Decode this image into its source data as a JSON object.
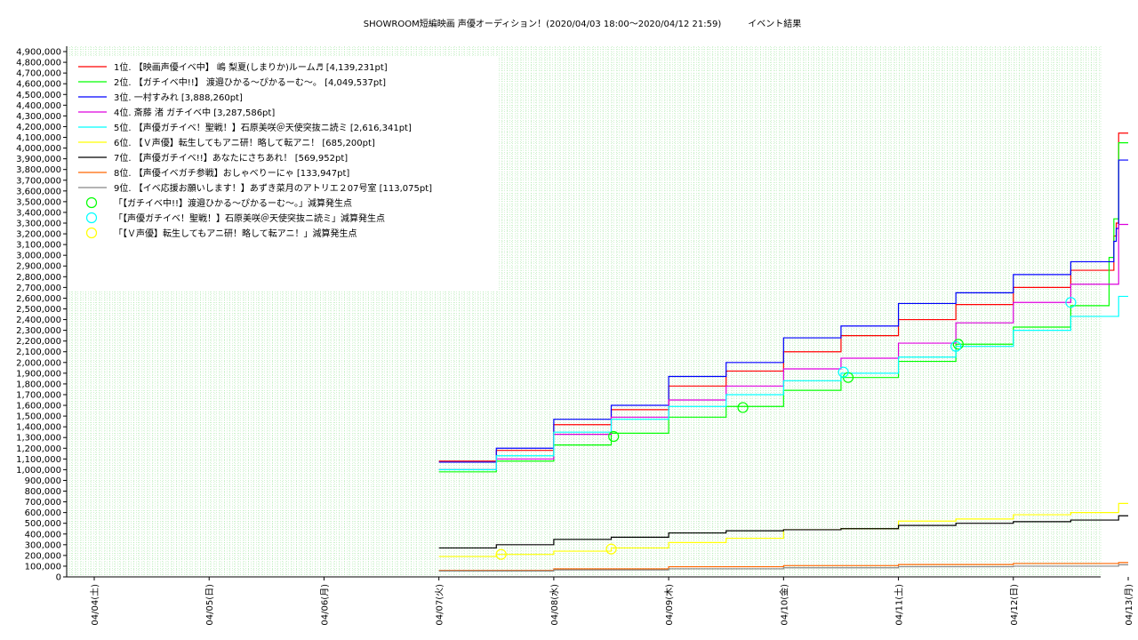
{
  "chart_data": {
    "type": "line",
    "title": "SHOWROOM短編映画 声優オーディション！(2020/04/03 18:00〜2020/04/12 21:59)　　　イベント結果",
    "xlabel": "",
    "ylabel": "",
    "x_ticks": [
      "04/04(土)",
      "04/05(日)",
      "04/06(月)",
      "04/07(火)",
      "04/08(水)",
      "04/09(木)",
      "04/10(金)",
      "04/11(土)",
      "04/12(日)",
      "04/13(月)"
    ],
    "xlim": [
      "2020-04-04T00:00",
      "2020-04-13T00:00"
    ],
    "ylim": [
      0,
      4950000
    ],
    "y_ticks": [
      0,
      100000,
      200000,
      300000,
      400000,
      500000,
      600000,
      700000,
      800000,
      900000,
      1000000,
      1100000,
      1200000,
      1300000,
      1400000,
      1500000,
      1600000,
      1700000,
      1800000,
      1900000,
      2000000,
      2100000,
      2200000,
      2300000,
      2400000,
      2500000,
      2600000,
      2700000,
      2800000,
      2900000,
      3000000,
      3100000,
      3200000,
      3300000,
      3400000,
      3500000,
      3600000,
      3700000,
      3800000,
      3900000,
      4000000,
      4100000,
      4200000,
      4300000,
      4400000,
      4500000,
      4600000,
      4700000,
      4800000,
      4900000
    ],
    "grid": true,
    "legend_position": "top-left",
    "series": [
      {
        "name": "1位. 【映画声優イベ中】 嶋 梨夏(しまりか)ルーム♬ [4,139,231pt]",
        "color": "#ff0000",
        "x": [
          "2020-04-07T00:00",
          "2020-04-07T12:00",
          "2020-04-08T00:00",
          "2020-04-08T12:00",
          "2020-04-09T00:00",
          "2020-04-09T12:00",
          "2020-04-10T00:00",
          "2020-04-10T12:00",
          "2020-04-11T00:00",
          "2020-04-11T12:00",
          "2020-04-12T00:00",
          "2020-04-12T12:00",
          "2020-04-12T21:00",
          "2020-04-12T21:30",
          "2020-04-12T22:00",
          "2020-04-13T00:00"
        ],
        "y": [
          1080000,
          1180000,
          1420000,
          1560000,
          1780000,
          1920000,
          2100000,
          2250000,
          2400000,
          2540000,
          2700000,
          2860000,
          3180000,
          3300000,
          4139231,
          4139231
        ]
      },
      {
        "name": "2位. 【ガチイベ中!!】 渡邉ひかる〜ぴかるーむ〜。 [4,049,537pt]",
        "color": "#00ff00",
        "x": [
          "2020-04-07T00:00",
          "2020-04-07T12:00",
          "2020-04-08T00:00",
          "2020-04-08T12:00",
          "2020-04-09T00:00",
          "2020-04-09T12:00",
          "2020-04-10T00:00",
          "2020-04-10T12:00",
          "2020-04-11T00:00",
          "2020-04-11T12:00",
          "2020-04-12T00:00",
          "2020-04-12T12:00",
          "2020-04-12T20:00",
          "2020-04-12T21:00",
          "2020-04-12T22:00",
          "2020-04-13T00:00"
        ],
        "y": [
          980000,
          1080000,
          1230000,
          1340000,
          1490000,
          1590000,
          1740000,
          1860000,
          2010000,
          2170000,
          2330000,
          2530000,
          2980000,
          3340000,
          4049537,
          4049537
        ]
      },
      {
        "name": "3位. 一村すみれ [3,888,260pt]",
        "color": "#0000ff",
        "x": [
          "2020-04-07T00:00",
          "2020-04-07T12:00",
          "2020-04-08T00:00",
          "2020-04-08T12:00",
          "2020-04-09T00:00",
          "2020-04-09T12:00",
          "2020-04-10T00:00",
          "2020-04-10T12:00",
          "2020-04-11T00:00",
          "2020-04-11T12:00",
          "2020-04-12T00:00",
          "2020-04-12T12:00",
          "2020-04-12T21:00",
          "2020-04-12T21:30",
          "2020-04-12T22:00",
          "2020-04-13T00:00"
        ],
        "y": [
          1070000,
          1200000,
          1470000,
          1600000,
          1870000,
          2000000,
          2230000,
          2340000,
          2550000,
          2650000,
          2820000,
          2940000,
          3130000,
          3250000,
          3888260,
          3888260
        ]
      },
      {
        "name": "4位. 斎藤 渚 ガチイベ中 [3,287,586pt]",
        "color": "#dd00dd",
        "x": [
          "2020-04-07T00:00",
          "2020-04-07T12:00",
          "2020-04-08T00:00",
          "2020-04-08T12:00",
          "2020-04-09T00:00",
          "2020-04-09T12:00",
          "2020-04-10T00:00",
          "2020-04-10T12:00",
          "2020-04-11T00:00",
          "2020-04-11T12:00",
          "2020-04-12T00:00",
          "2020-04-12T12:00",
          "2020-04-12T22:00",
          "2020-04-13T00:00"
        ],
        "y": [
          1000000,
          1100000,
          1330000,
          1490000,
          1650000,
          1780000,
          1940000,
          2040000,
          2180000,
          2370000,
          2560000,
          2730000,
          3287586,
          3287586
        ]
      },
      {
        "name": "5位. 【声優ガチイベ！聖戦！】石原美咲＠天使突抜ニ読ミ [2,616,341pt]",
        "color": "#00ffff",
        "x": [
          "2020-04-07T00:00",
          "2020-04-07T12:00",
          "2020-04-08T00:00",
          "2020-04-08T12:00",
          "2020-04-09T00:00",
          "2020-04-09T12:00",
          "2020-04-10T00:00",
          "2020-04-10T12:00",
          "2020-04-11T00:00",
          "2020-04-11T12:00",
          "2020-04-12T00:00",
          "2020-04-12T12:00",
          "2020-04-12T22:00",
          "2020-04-13T00:00"
        ],
        "y": [
          1000000,
          1130000,
          1350000,
          1470000,
          1590000,
          1700000,
          1830000,
          1900000,
          2050000,
          2150000,
          2300000,
          2430000,
          2616341,
          2616341
        ]
      },
      {
        "name": "6位. 【Ｖ声優】転生してもアニ研！略して転アニ！ [685,200pt]",
        "color": "#ffff00",
        "x": [
          "2020-04-07T00:00",
          "2020-04-07T12:00",
          "2020-04-08T00:00",
          "2020-04-08T12:00",
          "2020-04-09T00:00",
          "2020-04-09T12:00",
          "2020-04-10T00:00",
          "2020-04-10T12:00",
          "2020-04-11T00:00",
          "2020-04-11T12:00",
          "2020-04-12T00:00",
          "2020-04-12T12:00",
          "2020-04-12T22:00",
          "2020-04-13T00:00"
        ],
        "y": [
          190000,
          210000,
          240000,
          270000,
          320000,
          360000,
          440000,
          450000,
          520000,
          540000,
          580000,
          600000,
          685200,
          685200
        ]
      },
      {
        "name": "7位. 【声優ガチイベ!!】あなたにさちあれ！ [569,952pt]",
        "color": "#000000",
        "x": [
          "2020-04-07T00:00",
          "2020-04-07T12:00",
          "2020-04-08T00:00",
          "2020-04-08T12:00",
          "2020-04-09T00:00",
          "2020-04-09T12:00",
          "2020-04-10T00:00",
          "2020-04-10T12:00",
          "2020-04-11T00:00",
          "2020-04-11T12:00",
          "2020-04-12T00:00",
          "2020-04-12T12:00",
          "2020-04-12T22:00",
          "2020-04-13T00:00"
        ],
        "y": [
          270000,
          300000,
          350000,
          370000,
          410000,
          430000,
          440000,
          450000,
          480000,
          500000,
          515000,
          530000,
          569952,
          569952
        ]
      },
      {
        "name": "8位. 【声優イベガチ参戦】おしゃべりーにゃ [133,947pt]",
        "color": "#ff6600",
        "x": [
          "2020-04-07T00:00",
          "2020-04-08T00:00",
          "2020-04-09T00:00",
          "2020-04-10T00:00",
          "2020-04-11T00:00",
          "2020-04-12T00:00",
          "2020-04-12T22:00",
          "2020-04-13T00:00"
        ],
        "y": [
          60000,
          75000,
          95000,
          105000,
          115000,
          125000,
          133947,
          133947
        ]
      },
      {
        "name": "9位. 【イベ応援お願いします！】あずき菜月のアトリエ２07号室 [113,075pt]",
        "color": "#888888",
        "x": [
          "2020-04-07T00:00",
          "2020-04-08T00:00",
          "2020-04-09T00:00",
          "2020-04-10T00:00",
          "2020-04-11T00:00",
          "2020-04-12T00:00",
          "2020-04-12T22:00",
          "2020-04-13T00:00"
        ],
        "y": [
          55000,
          65000,
          75000,
          85000,
          95000,
          100000,
          113075,
          113075
        ]
      }
    ],
    "markers": [
      {
        "name": "「【ガチイベ中!!】渡邉ひかる〜ぴかるーむ〜。」減算発生点",
        "color": "#00ff00",
        "points": [
          {
            "x": "2020-04-08T12:30",
            "y": 1310000
          },
          {
            "x": "2020-04-09T15:30",
            "y": 1580000
          },
          {
            "x": "2020-04-10T13:30",
            "y": 1860000
          },
          {
            "x": "2020-04-11T12:30",
            "y": 2170000
          }
        ]
      },
      {
        "name": "「【声優ガチイベ！聖戦！】石原美咲＠天使突抜ニ読ミ」減算発生点",
        "color": "#00ffff",
        "points": [
          {
            "x": "2020-04-10T12:30",
            "y": 1910000
          },
          {
            "x": "2020-04-11T12:00",
            "y": 2150000
          },
          {
            "x": "2020-04-12T12:00",
            "y": 2560000
          }
        ]
      },
      {
        "name": "「【Ｖ声優】転生してもアニ研！略して転アニ！」減算発生点",
        "color": "#ffff00",
        "points": [
          {
            "x": "2020-04-07T13:00",
            "y": 210000
          },
          {
            "x": "2020-04-08T12:00",
            "y": 260000
          }
        ]
      }
    ]
  }
}
